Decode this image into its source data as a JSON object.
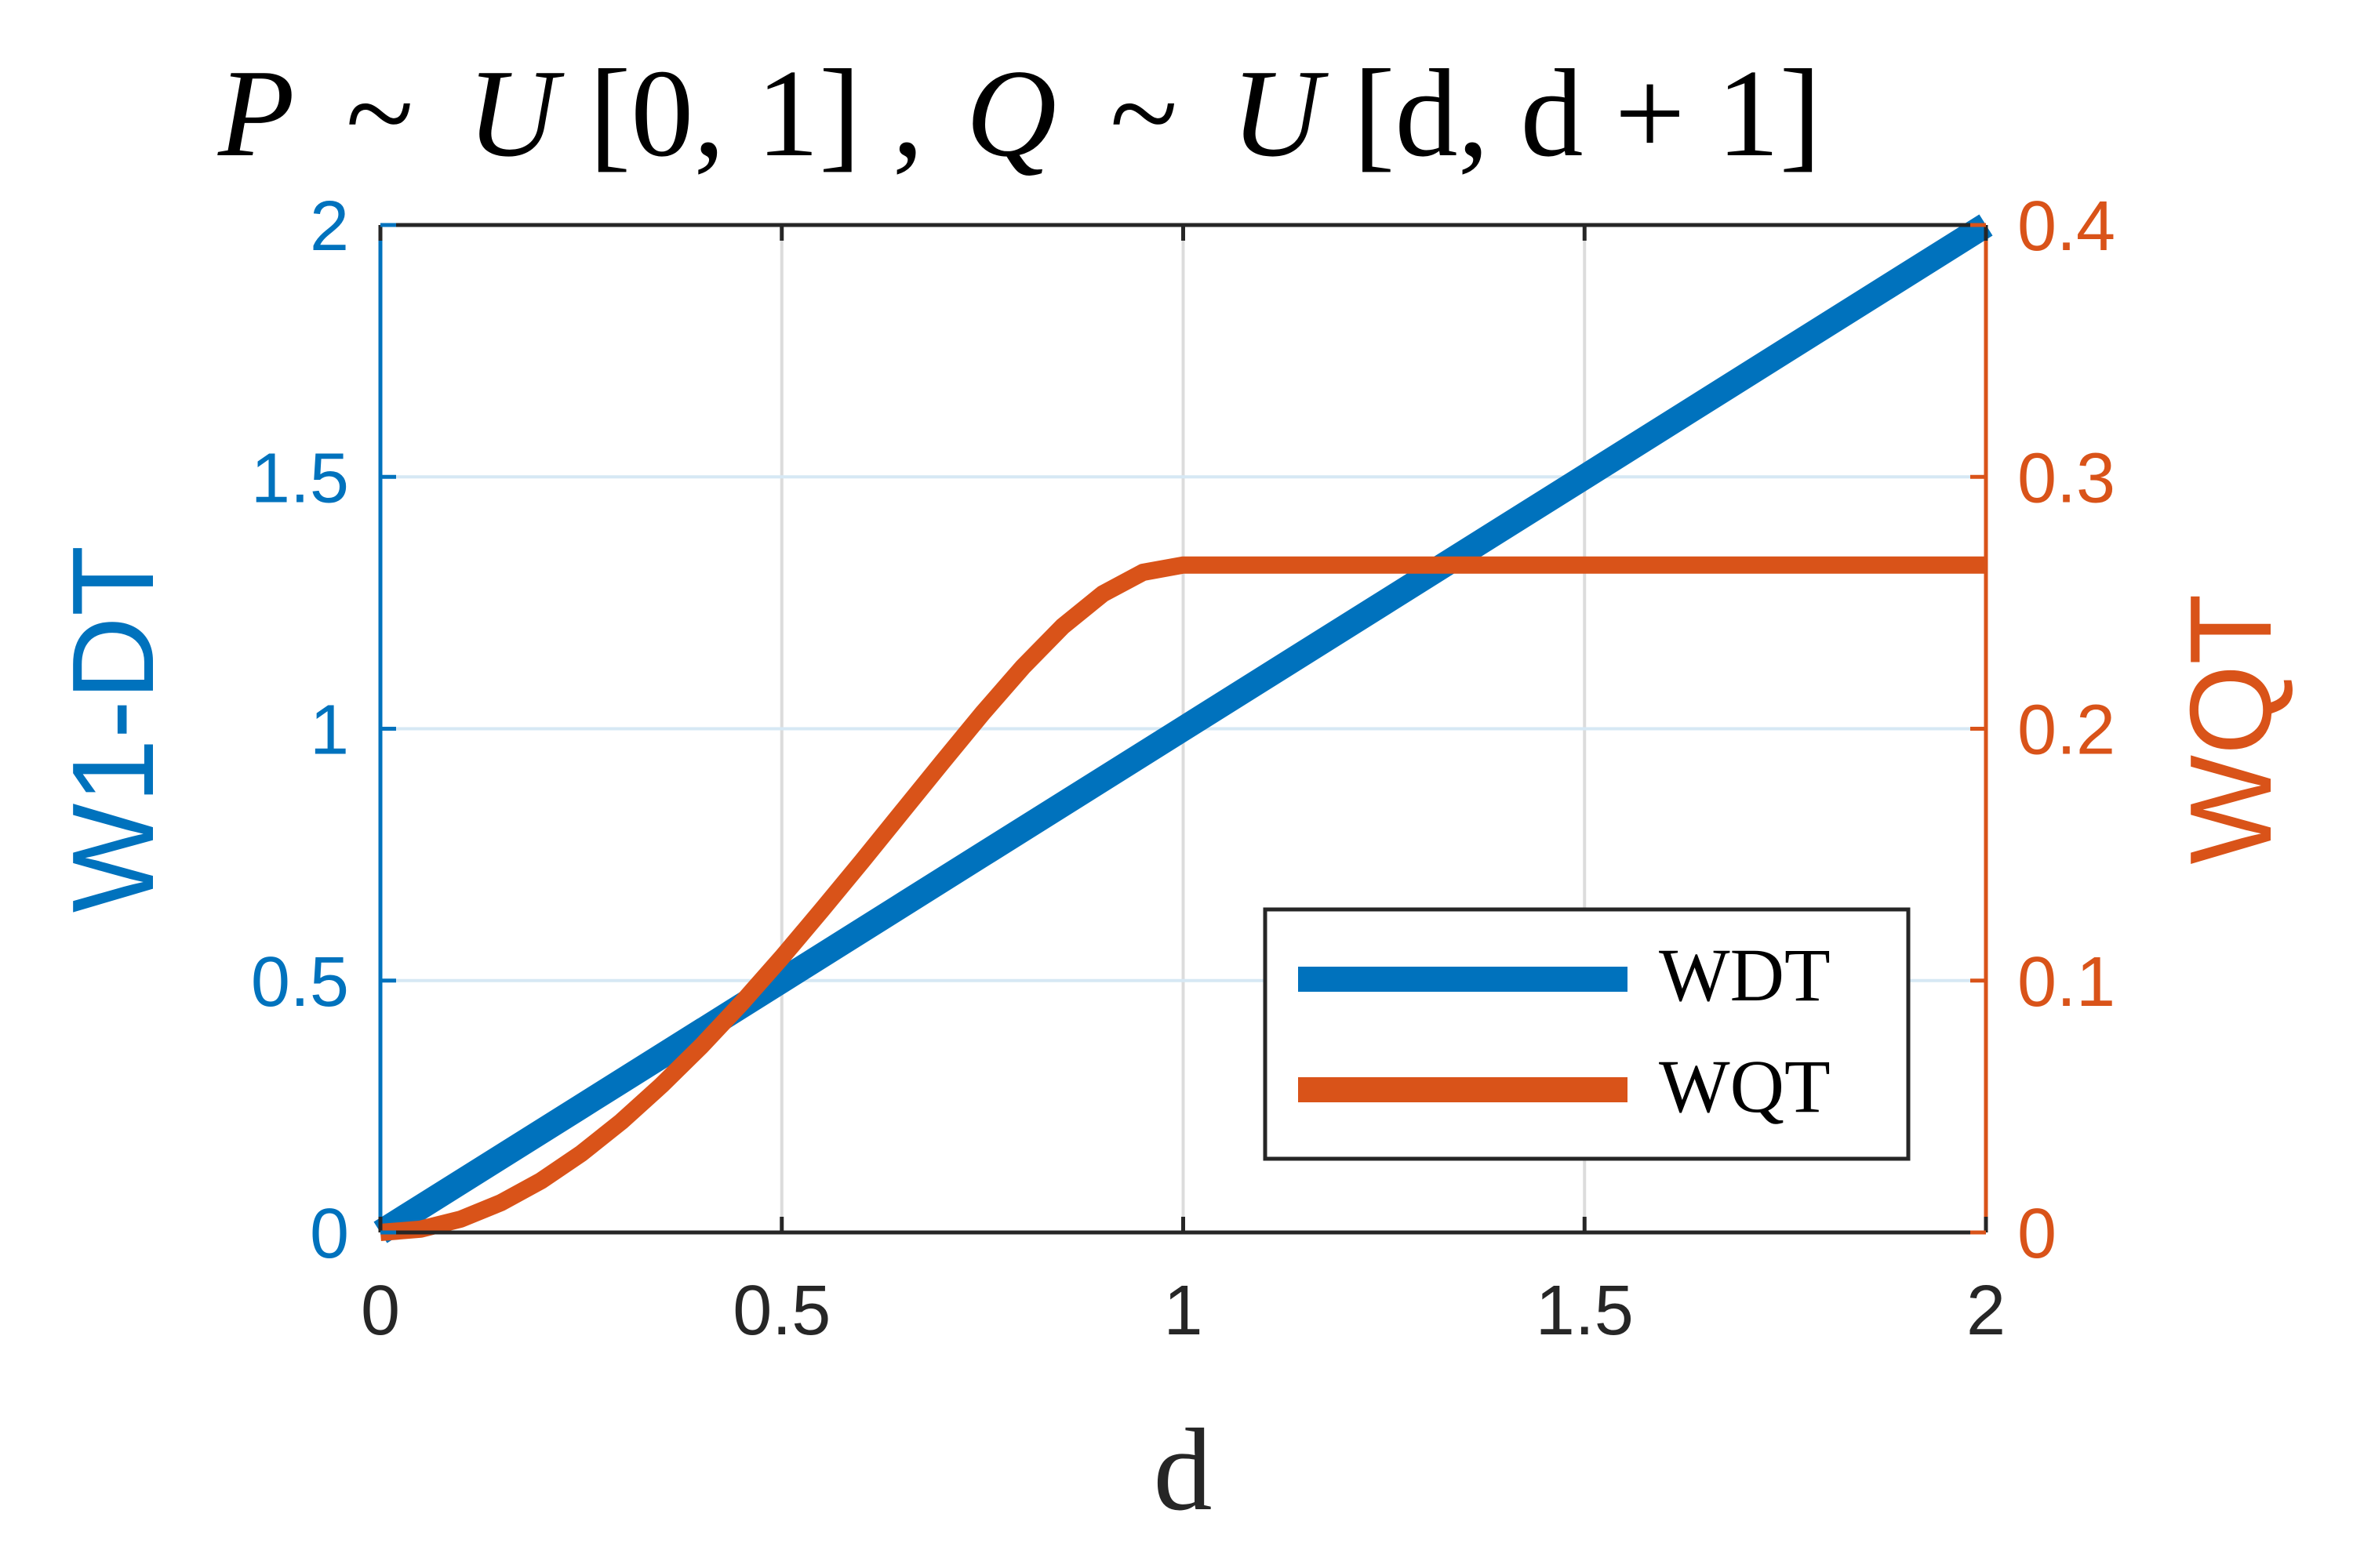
{
  "chart_data": {
    "type": "line",
    "title": "P ~ U[0, 1], Q ~ U[d, d + 1]",
    "title_parts": {
      "p": "P",
      "sim1": "~",
      "u1": "U",
      "range1": "[0, 1]",
      "comma": ",",
      "q": "Q",
      "sim2": "~",
      "u2": "U",
      "range2": "[d, d + 1]"
    },
    "xlabel": "d",
    "ylabel_left": "W1-DT",
    "ylabel_right": "WQT",
    "xlim": [
      0,
      2
    ],
    "ylim_left": [
      0,
      2
    ],
    "ylim_right": [
      0,
      0.4
    ],
    "x_ticks": [
      "0",
      "0.5",
      "1",
      "1.5",
      "2"
    ],
    "y_left_ticks": [
      "0",
      "0.5",
      "1",
      "1.5",
      "2"
    ],
    "y_right_ticks": [
      "0",
      "0.1",
      "0.2",
      "0.3",
      "0.4"
    ],
    "grid": true,
    "legend_position": "bottom-right",
    "legend": [
      "WDT",
      "WQT"
    ],
    "series": [
      {
        "name": "WDT",
        "axis": "left",
        "color": "#0072BD",
        "x": [
          0,
          0.25,
          0.5,
          0.75,
          1,
          1.25,
          1.5,
          1.75,
          2
        ],
        "y": [
          0,
          0.25,
          0.5,
          0.75,
          1,
          1.25,
          1.5,
          1.75,
          2
        ]
      },
      {
        "name": "WQT",
        "axis": "right",
        "color": "#D95319",
        "x": [
          0,
          0.05,
          0.1,
          0.15,
          0.2,
          0.25,
          0.3,
          0.35,
          0.4,
          0.45,
          0.5,
          0.55,
          0.6,
          0.65,
          0.7,
          0.75,
          0.8,
          0.85,
          0.9,
          0.95,
          1,
          1.25,
          1.5,
          1.75,
          2
        ],
        "y": [
          0,
          0.0013,
          0.0053,
          0.0118,
          0.0205,
          0.0313,
          0.044,
          0.0584,
          0.0741,
          0.0911,
          0.1092,
          0.1281,
          0.1474,
          0.1671,
          0.1867,
          0.2061,
          0.2244,
          0.2407,
          0.2536,
          0.2621,
          0.265,
          0.265,
          0.265,
          0.265,
          0.265
        ]
      }
    ]
  }
}
